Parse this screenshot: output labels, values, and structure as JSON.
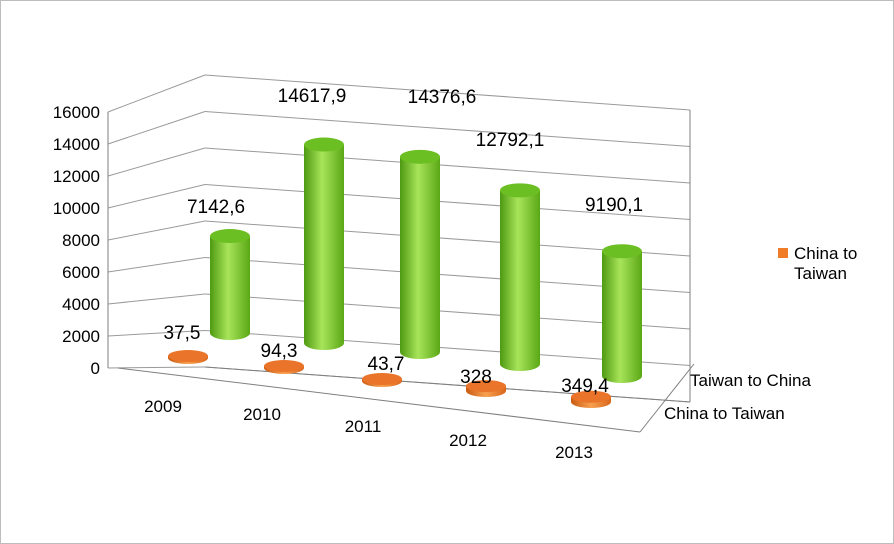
{
  "chart_data": {
    "type": "bar",
    "variant": "3d-cylinder",
    "title": "",
    "xlabel": "",
    "ylabel": "",
    "categories": [
      "2009",
      "2010",
      "2011",
      "2012",
      "2013"
    ],
    "series": [
      {
        "name": "China to Taiwan",
        "values": [
          37.5,
          94.3,
          43.7,
          328,
          349.4
        ],
        "labels": [
          "37,5",
          "94,3",
          "43,7",
          "328",
          "349,4"
        ],
        "color": "#f07c28"
      },
      {
        "name": "Taiwan to China",
        "values": [
          7142.6,
          14617.9,
          14376.6,
          12792.1,
          9190.1
        ],
        "labels": [
          "7142,6",
          "14617,9",
          "14376,6",
          "12792,1",
          "9190,1"
        ],
        "color": "#86d12c"
      }
    ],
    "ylim": [
      0,
      16000
    ],
    "yticks": [
      "0",
      "2000",
      "4000",
      "6000",
      "8000",
      "10000",
      "12000",
      "14000",
      "16000"
    ],
    "grid": true,
    "legend": {
      "placement": "right",
      "entries": [
        {
          "label": "China to Taiwan",
          "color": "#f07c28"
        }
      ]
    }
  }
}
